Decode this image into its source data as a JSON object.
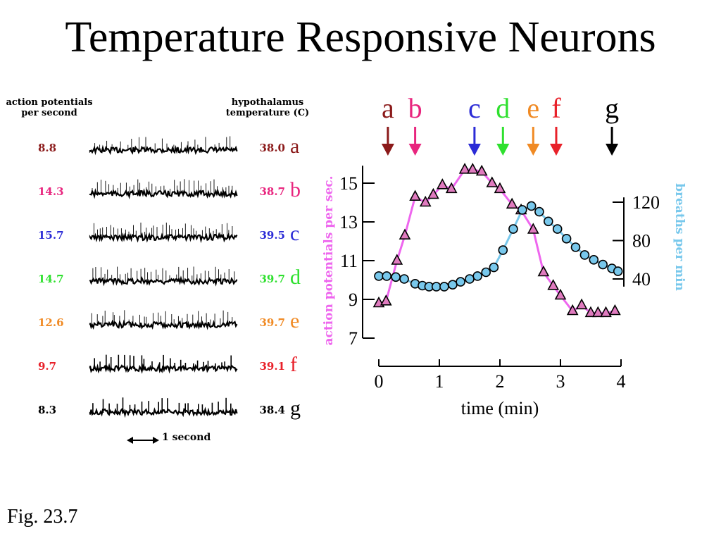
{
  "title": "Temperature Responsive Neurons",
  "figure_label": "Fig. 23.7",
  "recordings": {
    "rate_header": "action potentials per second",
    "temp_header": "hypothalamus temperature (C)",
    "scale_label": "1 second",
    "rows": [
      {
        "rate": "8.8",
        "temp": "38.0",
        "letter": "a",
        "color": "#8b1a1a",
        "spikes": 22
      },
      {
        "rate": "14.3",
        "temp": "38.7",
        "letter": "b",
        "color": "#e8257e",
        "spikes": 36
      },
      {
        "rate": "15.7",
        "temp": "39.5",
        "letter": "c",
        "color": "#2b2bd6",
        "spikes": 40
      },
      {
        "rate": "14.7",
        "temp": "39.7",
        "letter": "d",
        "color": "#2ee02e",
        "spikes": 37
      },
      {
        "rate": "12.6",
        "temp": "39.7",
        "letter": "e",
        "color": "#f08a24",
        "spikes": 32
      },
      {
        "rate": "9.7",
        "temp": "39.1",
        "letter": "f",
        "color": "#e8212a",
        "spikes": 25
      },
      {
        "rate": "8.3",
        "temp": "38.4",
        "letter": "g",
        "color": "#000000",
        "spikes": 21
      }
    ]
  },
  "chart_data": {
    "type": "line",
    "xlabel": "time (min)",
    "xlim": [
      0,
      4
    ],
    "x_ticks": [
      "0",
      "1",
      "2",
      "3",
      "4"
    ],
    "y_left": {
      "label": "action potentials per sec.",
      "ticks": [
        "7",
        "9",
        "11",
        "13",
        "15"
      ],
      "range": [
        7,
        16
      ],
      "color": "#ee66ee"
    },
    "y_right": {
      "label": "breaths per min",
      "ticks": [
        "40",
        "80",
        "120"
      ],
      "range": [
        40,
        120
      ],
      "color": "#78c8ec"
    },
    "markers": [
      {
        "label": "a",
        "x": 0.15,
        "color": "#8b1a1a"
      },
      {
        "label": "b",
        "x": 0.6,
        "color": "#e8257e"
      },
      {
        "label": "c",
        "x": 1.58,
        "color": "#2b2bd6"
      },
      {
        "label": "d",
        "x": 2.05,
        "color": "#2ee02e"
      },
      {
        "label": "e",
        "x": 2.55,
        "color": "#f08a24"
      },
      {
        "label": "f",
        "x": 2.93,
        "color": "#e8212a"
      },
      {
        "label": "g",
        "x": 3.85,
        "color": "#000000"
      }
    ],
    "series": [
      {
        "name": "action potentials per sec.",
        "axis": "left",
        "marker": "triangle",
        "fill": "#e07bbf",
        "line": "#ee66ee",
        "x": [
          0.0,
          0.12,
          0.3,
          0.43,
          0.6,
          0.77,
          0.9,
          1.05,
          1.2,
          1.42,
          1.55,
          1.7,
          1.87,
          2.0,
          2.2,
          2.35,
          2.55,
          2.72,
          2.88,
          3.0,
          3.2,
          3.35,
          3.5,
          3.62,
          3.75,
          3.9
        ],
        "y": [
          8.8,
          8.9,
          11.0,
          12.3,
          14.3,
          14.0,
          14.4,
          14.9,
          14.7,
          15.7,
          15.7,
          15.6,
          15.0,
          14.7,
          13.9,
          13.6,
          12.6,
          10.4,
          9.7,
          9.2,
          8.4,
          8.7,
          8.3,
          8.3,
          8.3,
          8.4
        ]
      },
      {
        "name": "breaths per min",
        "axis": "right",
        "marker": "circle",
        "fill": "#78c8ec",
        "line": "#78c8ec",
        "x": [
          0.0,
          0.13,
          0.28,
          0.42,
          0.6,
          0.72,
          0.83,
          0.95,
          1.08,
          1.22,
          1.35,
          1.5,
          1.63,
          1.77,
          1.9,
          2.05,
          2.22,
          2.37,
          2.52,
          2.65,
          2.8,
          2.95,
          3.1,
          3.25,
          3.4,
          3.55,
          3.7,
          3.85,
          3.95
        ],
        "y": [
          43,
          43,
          42,
          40,
          35,
          33,
          32,
          32,
          32,
          34,
          37,
          40,
          43,
          47,
          52,
          70,
          92,
          112,
          116,
          110,
          100,
          92,
          82,
          73,
          65,
          60,
          55,
          51,
          48
        ]
      }
    ]
  }
}
